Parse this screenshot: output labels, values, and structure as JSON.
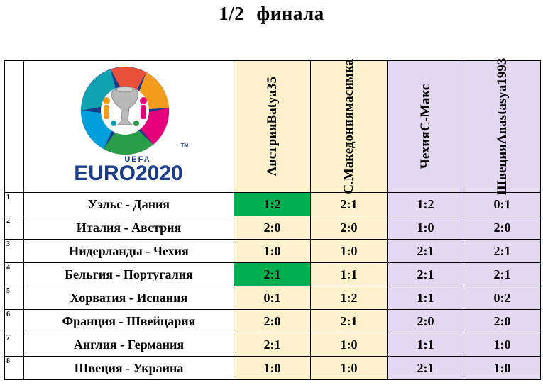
{
  "title": "1/2  финала",
  "logo": {
    "uefa": "UEFA",
    "euro": "EURO2020",
    "tm": "TM"
  },
  "colors": {
    "cream": "#fff2cc",
    "lavender": "#e3d9f2",
    "highlight_green": "#00b050"
  },
  "players": [
    {
      "team": "Австрия",
      "name": "Batya35"
    },
    {
      "team": "С.Македония",
      "name": "масимка"
    },
    {
      "team": "Чехия",
      "name": "С-Макс"
    },
    {
      "team": "Швеция",
      "name": "Anastasya1993"
    }
  ],
  "matches": [
    {
      "num": "1",
      "match": "Уэльс - Дания",
      "preds": [
        "1:2",
        "2:1",
        "1:2",
        "0:1"
      ]
    },
    {
      "num": "2",
      "match": "Италия - Австрия",
      "preds": [
        "2:0",
        "2:0",
        "1:0",
        "2:0"
      ]
    },
    {
      "num": "3",
      "match": "Нидерланды - Чехия",
      "preds": [
        "1:0",
        "1:0",
        "2:1",
        "2:1"
      ]
    },
    {
      "num": "4",
      "match": "Бельгия - Португалия",
      "preds": [
        "2:1",
        "1:1",
        "2:1",
        "2:1"
      ]
    },
    {
      "num": "5",
      "match": "Хорватия - Испания",
      "preds": [
        "0:1",
        "1:2",
        "1:1",
        "0:2"
      ]
    },
    {
      "num": "6",
      "match": "Франция - Швейцария",
      "preds": [
        "2:0",
        "2:1",
        "2:0",
        "2:0"
      ]
    },
    {
      "num": "7",
      "match": "Англия - Германия",
      "preds": [
        "2:1",
        "1:0",
        "1:1",
        "1:0"
      ]
    },
    {
      "num": "8",
      "match": "Швеция - Украина",
      "preds": [
        "1:0",
        "1:0",
        "2:1",
        "1:0"
      ]
    }
  ],
  "highlighted_cells": [
    {
      "row": 1,
      "col": 1
    },
    {
      "row": 4,
      "col": 1
    }
  ]
}
